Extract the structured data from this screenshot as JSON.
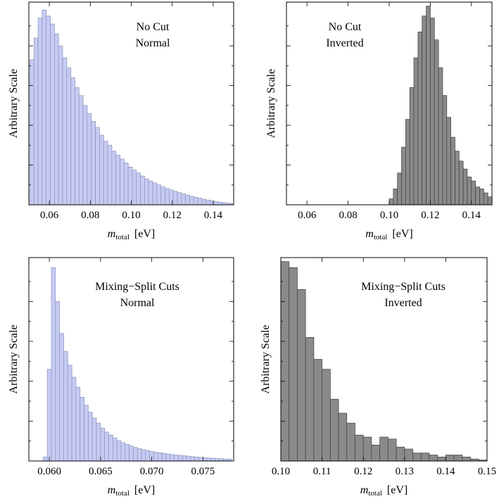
{
  "chart_data": [
    {
      "type": "bar",
      "panel": "top-left",
      "annotation": [
        "No Cut",
        "Normal"
      ],
      "ylabel": "Arbitrary Scale",
      "xlabel": {
        "main": "m",
        "sub": "total",
        "unit": "[eV]"
      },
      "xlim": [
        0.05,
        0.15
      ],
      "ylim": [
        0,
        1.02
      ],
      "xticks": [
        0.06,
        0.08,
        0.1,
        0.12,
        0.14
      ],
      "xtick_labels": [
        "0.06",
        "0.08",
        "0.10",
        "0.12",
        "0.14"
      ],
      "bin_start": 0.0505,
      "bin_width": 0.002,
      "values": [
        0.73,
        0.84,
        0.94,
        0.98,
        0.95,
        0.91,
        0.86,
        0.8,
        0.74,
        0.69,
        0.64,
        0.59,
        0.55,
        0.5,
        0.46,
        0.42,
        0.39,
        0.35,
        0.32,
        0.3,
        0.27,
        0.25,
        0.23,
        0.21,
        0.19,
        0.175,
        0.16,
        0.145,
        0.13,
        0.12,
        0.11,
        0.1,
        0.09,
        0.082,
        0.075,
        0.068,
        0.061,
        0.055,
        0.049,
        0.043,
        0.038,
        0.033,
        0.028,
        0.024,
        0.02,
        0.016,
        0.013,
        0.01,
        0.008,
        0.006
      ],
      "color": "#c5cbf3",
      "edge": "#8c93b8"
    },
    {
      "type": "bar",
      "panel": "top-right",
      "annotation": [
        "No Cut",
        "Inverted"
      ],
      "ylabel": "Arbitrary Scale",
      "xlabel": {
        "main": "m",
        "sub": "total",
        "unit": "[eV]"
      },
      "xlim": [
        0.05,
        0.15
      ],
      "ylim": [
        0,
        1.02
      ],
      "xticks": [
        0.06,
        0.08,
        0.1,
        0.12,
        0.14
      ],
      "xtick_labels": [
        "0.06",
        "0.08",
        "0.10",
        "0.12",
        "0.14"
      ],
      "bin_start": 0.1,
      "bin_width": 0.002,
      "values": [
        0.03,
        0.08,
        0.16,
        0.29,
        0.43,
        0.59,
        0.74,
        0.87,
        0.95,
        1.0,
        0.94,
        0.83,
        0.69,
        0.55,
        0.44,
        0.34,
        0.27,
        0.22,
        0.18,
        0.14,
        0.12,
        0.09,
        0.08,
        0.06,
        0.04
      ],
      "color": "#8a8a8a",
      "edge": "#3f3f3f"
    },
    {
      "type": "bar",
      "panel": "bottom-left",
      "annotation": [
        "Mixing−Split Cuts",
        "Normal"
      ],
      "ylabel": "Arbitrary Scale",
      "xlabel": {
        "main": "m",
        "sub": "total",
        "unit": "[eV]"
      },
      "xlim": [
        0.058,
        0.078
      ],
      "ylim": [
        0,
        1.02
      ],
      "xticks": [
        0.06,
        0.065,
        0.07,
        0.075
      ],
      "xtick_labels": [
        "0.060",
        "0.065",
        "0.070",
        "0.075"
      ],
      "bin_start": 0.0594,
      "bin_width": 0.0004,
      "values": [
        0.02,
        0.46,
        0.97,
        0.8,
        0.64,
        0.55,
        0.48,
        0.42,
        0.37,
        0.32,
        0.28,
        0.245,
        0.215,
        0.19,
        0.165,
        0.145,
        0.13,
        0.115,
        0.102,
        0.092,
        0.083,
        0.075,
        0.068,
        0.062,
        0.057,
        0.052,
        0.048,
        0.044,
        0.041,
        0.038,
        0.035,
        0.032,
        0.03,
        0.028,
        0.026,
        0.024,
        0.022,
        0.02,
        0.018,
        0.016,
        0.015,
        0.014,
        0.012,
        0.011,
        0.01,
        0.009
      ],
      "color": "#c5cbf3",
      "edge": "#8c93b8"
    },
    {
      "type": "bar",
      "panel": "bottom-right",
      "annotation": [
        "Mixing−Split Cuts",
        "Inverted"
      ],
      "ylabel": "Arbitrary Scale",
      "xlabel": {
        "main": "m",
        "sub": "total",
        "unit": "[eV]"
      },
      "xlim": [
        0.1,
        0.15
      ],
      "ylim": [
        0,
        1.02
      ],
      "xticks": [
        0.1,
        0.11,
        0.12,
        0.13,
        0.14,
        0.15
      ],
      "xtick_labels": [
        "0.10",
        "0.11",
        "0.12",
        "0.13",
        "0.14",
        "0.15"
      ],
      "bin_start": 0.1,
      "bin_width": 0.002,
      "values": [
        1.0,
        0.97,
        0.86,
        0.62,
        0.51,
        0.46,
        0.31,
        0.24,
        0.19,
        0.13,
        0.12,
        0.08,
        0.12,
        0.11,
        0.07,
        0.06,
        0.04,
        0.04,
        0.03,
        0.02,
        0.03,
        0.03,
        0.02,
        0.01,
        0.005
      ],
      "color": "#8a8a8a",
      "edge": "#3f3f3f"
    }
  ]
}
